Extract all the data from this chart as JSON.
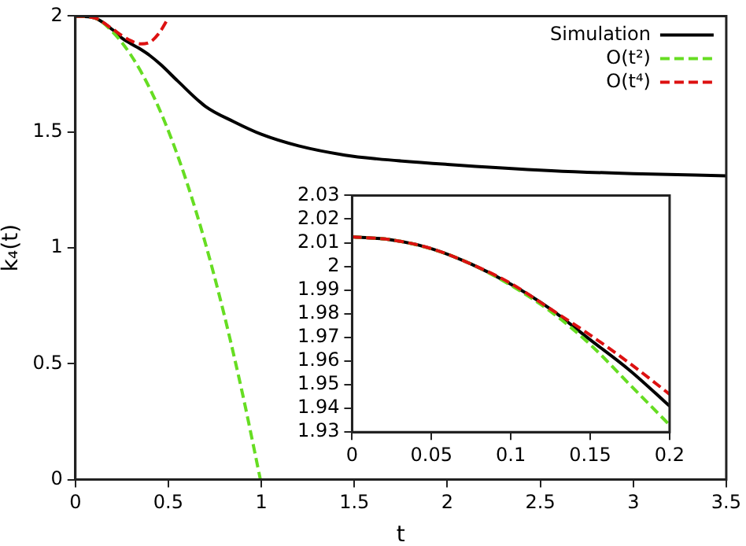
{
  "chart_data": [
    {
      "type": "line",
      "xlabel": "t",
      "ylabel": "k₄(t)",
      "xlim": [
        0,
        3.5
      ],
      "ylim": [
        0,
        2
      ],
      "xticks": [
        0,
        0.5,
        1,
        1.5,
        2,
        2.5,
        3,
        3.5
      ],
      "yticks": [
        0,
        0.5,
        1,
        1.5,
        2
      ],
      "grid": false,
      "legend": "top right",
      "marker": "none",
      "series": [
        {
          "name": "Simulation",
          "color": "#000000",
          "line_style": "solid",
          "x": [
            0,
            0.1,
            0.2,
            0.25,
            0.3,
            0.34,
            0.4,
            0.46,
            0.55,
            0.7,
            0.85,
            1,
            1.2,
            1.45,
            1.62,
            2,
            2.56,
            3,
            3.5
          ],
          "values": [
            2,
            1.993,
            1.941,
            1.905,
            1.88,
            1.862,
            1.83,
            1.79,
            1.72,
            1.61,
            1.545,
            1.49,
            1.44,
            1.4,
            1.384,
            1.36,
            1.333,
            1.32,
            1.311
          ]
        },
        {
          "name": "O(t²)",
          "color": "#66dd22",
          "line_style": "dashed",
          "x": [
            0,
            0.1,
            0.2,
            0.3,
            0.4,
            0.5,
            0.6,
            0.7,
            0.8,
            0.9,
            0.995
          ],
          "values": [
            2,
            1.993,
            1.932,
            1.83,
            1.688,
            1.505,
            1.281,
            1.017,
            0.712,
            0.366,
            0
          ]
        },
        {
          "name": "O(t⁴)",
          "color": "#dd1111",
          "line_style": "dashed",
          "x": [
            0,
            0.1,
            0.2,
            0.25,
            0.3,
            0.35,
            0.4,
            0.45,
            0.5
          ],
          "values": [
            2,
            1.993,
            1.944,
            1.916,
            1.893,
            1.88,
            1.887,
            1.926,
            1.992
          ]
        }
      ]
    },
    {
      "type": "line",
      "xlim": [
        0,
        0.2
      ],
      "ylim": [
        1.93,
        2.03
      ],
      "xticks": [
        0,
        0.05,
        0.1,
        0.15,
        0.2
      ],
      "yticks": [
        1.93,
        1.94,
        1.95,
        1.96,
        1.97,
        1.98,
        1.99,
        2,
        2.01,
        2.02,
        2.03
      ],
      "grid": false,
      "legend": false,
      "marker": "none",
      "series": [
        {
          "color": "#000000",
          "line_style": "solid",
          "x": [
            0,
            0.025,
            0.05,
            0.075,
            0.1,
            0.125,
            0.15,
            0.175,
            0.2
          ],
          "values": [
            2.0125,
            2.0112,
            2.0075,
            2.001,
            1.9925,
            1.982,
            1.969,
            1.956,
            1.941
          ]
        },
        {
          "color": "#66dd22",
          "line_style": "dashed",
          "x": [
            0,
            0.025,
            0.05,
            0.075,
            0.1,
            0.125,
            0.15,
            0.175,
            0.2
          ],
          "values": [
            2.0125,
            2.0112,
            2.0074,
            2.001,
            1.992,
            1.981,
            1.967,
            1.95,
            1.933
          ]
        },
        {
          "color": "#dd1111",
          "line_style": "dashed",
          "x": [
            0,
            0.025,
            0.05,
            0.075,
            0.1,
            0.125,
            0.15,
            0.175,
            0.2
          ],
          "values": [
            2.0125,
            2.0112,
            2.0075,
            2.001,
            1.9928,
            1.982,
            1.971,
            1.959,
            1.946
          ]
        }
      ]
    }
  ]
}
